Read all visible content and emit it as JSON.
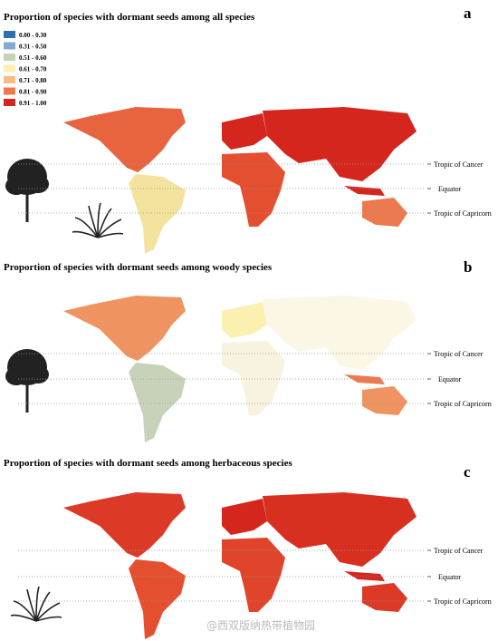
{
  "panels": [
    {
      "label": "a",
      "title": "Proportion of species with dormant seeds among all species"
    },
    {
      "label": "b",
      "title": "Proportion of species with dormant seeds among woody species"
    },
    {
      "label": "c",
      "title": "Proportion of species with dormant seeds among herbaceous species"
    }
  ],
  "legend": [
    {
      "label": "0.00 - 0.30",
      "color": "#2f6fb0"
    },
    {
      "label": "0.31 - 0.50",
      "color": "#86a9cf"
    },
    {
      "label": "0.51 - 0.60",
      "color": "#c7d2b9"
    },
    {
      "label": "0.61 - 0.70",
      "color": "#fbf0b0"
    },
    {
      "label": "0.71 - 0.80",
      "color": "#f6bd85"
    },
    {
      "label": "0.81 - 0.90",
      "color": "#ec7a4e"
    },
    {
      "label": "0.91 - 1.00",
      "color": "#d5261e"
    }
  ],
  "latitude_lines": [
    "Tropic of Cancer",
    "Equator",
    "Tropic of Capricorn"
  ],
  "watermark": "@西双版纳热带植物园"
}
